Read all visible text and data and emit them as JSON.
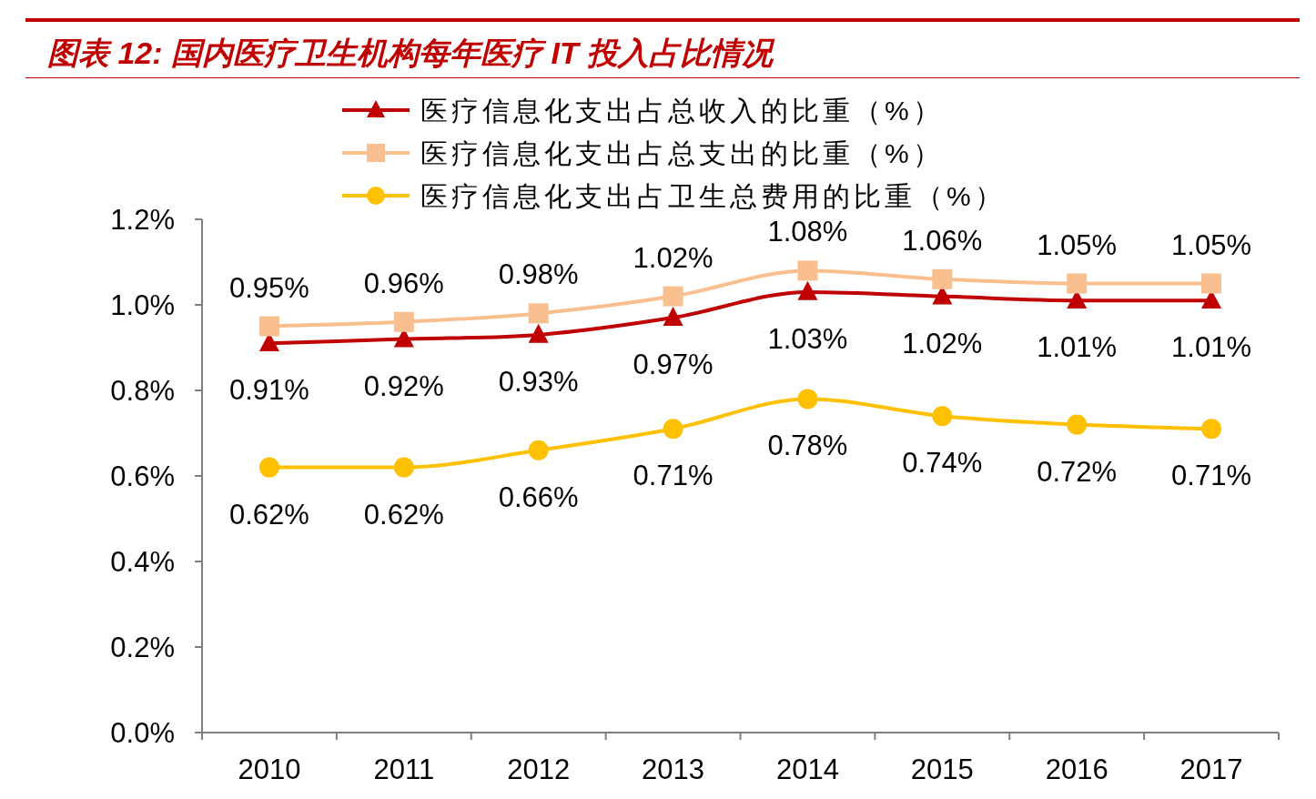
{
  "chart_data": {
    "type": "line",
    "title": "图表 12: 国内医疗卫生机构每年医疗 IT 投入占比情况",
    "categories": [
      "2010",
      "2011",
      "2012",
      "2013",
      "2014",
      "2015",
      "2016",
      "2017"
    ],
    "series": [
      {
        "name": "医疗信息化支出占总收入的比重（%）",
        "color": "#c00000",
        "marker": "triangle",
        "values": [
          0.91,
          0.92,
          0.93,
          0.97,
          1.03,
          1.02,
          1.01,
          1.01
        ],
        "value_labels": [
          "0.91%",
          "0.92%",
          "0.93%",
          "0.97%",
          "1.03%",
          "1.02%",
          "1.01%",
          "1.01%"
        ]
      },
      {
        "name": "医疗信息化支出占总支出的比重（%）",
        "color": "#f9bf8f",
        "marker": "square",
        "values": [
          0.95,
          0.96,
          0.98,
          1.02,
          1.08,
          1.06,
          1.05,
          1.05
        ],
        "value_labels": [
          "0.95%",
          "0.96%",
          "0.98%",
          "1.02%",
          "1.08%",
          "1.06%",
          "1.05%",
          "1.05%"
        ]
      },
      {
        "name": "医疗信息化支出占卫生总费用的比重（%）",
        "color": "#ffc000",
        "marker": "circle",
        "values": [
          0.62,
          0.62,
          0.66,
          0.71,
          0.78,
          0.74,
          0.72,
          0.71
        ],
        "value_labels": [
          "0.62%",
          "0.62%",
          "0.66%",
          "0.71%",
          "0.78%",
          "0.74%",
          "0.72%",
          "0.71%"
        ]
      }
    ],
    "ylim": [
      0,
      1.2
    ],
    "yticks": [
      {
        "value": 0,
        "label": "0.0%"
      },
      {
        "value": 0.2,
        "label": "0.2%"
      },
      {
        "value": 0.4,
        "label": "0.4%"
      },
      {
        "value": 0.6,
        "label": "0.6%"
      },
      {
        "value": 0.8,
        "label": "0.8%"
      },
      {
        "value": 1.0,
        "label": "1.0%"
      },
      {
        "value": 1.2,
        "label": "1.2%"
      }
    ],
    "legend": "top",
    "grid": false
  }
}
